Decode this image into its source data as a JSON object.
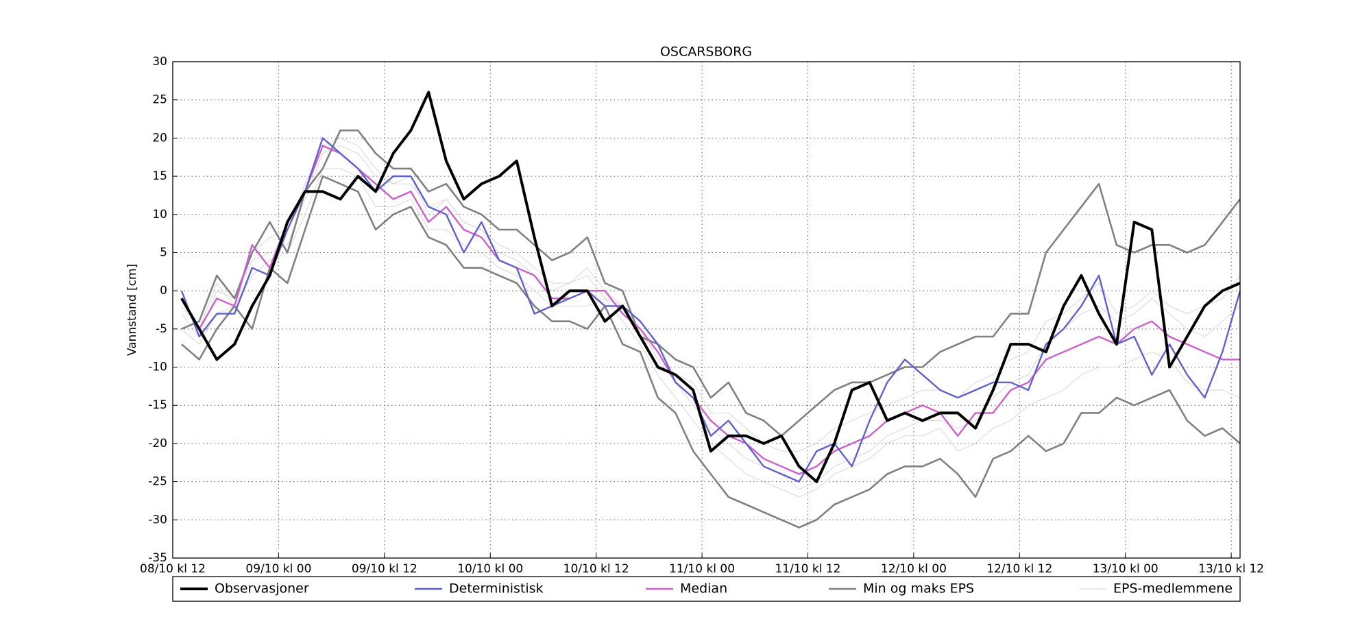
{
  "chart_data": {
    "type": "line",
    "title": "OSCARSBORG",
    "ylabel": "Vannstand [cm]",
    "x": [
      1,
      3,
      5,
      7,
      9,
      11,
      13,
      15,
      17,
      19,
      21,
      23,
      25,
      27,
      29,
      31,
      33,
      35,
      37,
      39,
      41,
      43,
      45,
      47,
      49,
      51,
      53,
      55,
      57,
      59,
      61,
      63,
      65,
      67,
      69,
      71,
      73,
      75,
      77,
      79,
      81,
      83,
      85,
      87,
      89,
      91,
      93,
      95,
      97,
      99,
      101,
      103,
      105,
      107,
      109,
      111,
      113,
      115,
      117,
      119,
      121
    ],
    "xlim": [
      0,
      121
    ],
    "xticks": [
      {
        "value": 0,
        "label": "08/10 kl 12"
      },
      {
        "value": 12,
        "label": "09/10 kl 00"
      },
      {
        "value": 24,
        "label": "09/10 kl 12"
      },
      {
        "value": 36,
        "label": "10/10 kl 00"
      },
      {
        "value": 48,
        "label": "10/10 kl 12"
      },
      {
        "value": 60,
        "label": "11/10 kl 00"
      },
      {
        "value": 72,
        "label": "11/10 kl 12"
      },
      {
        "value": 84,
        "label": "12/10 kl 00"
      },
      {
        "value": 96,
        "label": "12/10 kl 12"
      },
      {
        "value": 108,
        "label": "13/10 kl 00"
      },
      {
        "value": 120,
        "label": "13/10 kl 12"
      }
    ],
    "ylim": [
      -35,
      30
    ],
    "yticks": [
      -35,
      -30,
      -25,
      -20,
      -15,
      -10,
      -5,
      0,
      5,
      10,
      15,
      20,
      25,
      30
    ],
    "grid": true,
    "series": [
      {
        "name": "Observasjoner",
        "color": "#000000",
        "values": [
          -1,
          -5,
          -9,
          -7,
          -2,
          2,
          9,
          13,
          13,
          12,
          15,
          13,
          18,
          21,
          26,
          17,
          12,
          14,
          15,
          17,
          7,
          -2,
          0,
          0,
          -4,
          -2,
          -6,
          -10,
          -11,
          -13,
          -21,
          -19,
          -19,
          -20,
          -19,
          -23,
          -25,
          -20,
          -13,
          -12,
          -17,
          -16,
          -17,
          -16,
          -16,
          -18,
          -13,
          -7,
          -7,
          -8,
          -2,
          2,
          -3,
          -7,
          9,
          8,
          -10,
          -6,
          -2,
          0,
          1
        ]
      },
      {
        "name": "Deterministisk",
        "color": "#6060cc",
        "values": [
          0,
          -6,
          -3,
          -3,
          3,
          2,
          8,
          13,
          20,
          18,
          16,
          13,
          15,
          15,
          11,
          10,
          5,
          9,
          4,
          3,
          -3,
          -2,
          -1,
          0,
          -2,
          -2,
          -4,
          -7,
          -12,
          -14,
          -19,
          -17,
          -20,
          -23,
          -24,
          -25,
          -21,
          -20,
          -23,
          -17,
          -12,
          -9,
          -11,
          -13,
          -14,
          -13,
          -12,
          -12,
          -13,
          -7,
          -5,
          -2,
          2,
          -7,
          -6,
          -11,
          -7,
          -11,
          -14,
          -8,
          0
        ]
      },
      {
        "name": "Median",
        "color": "#cc5fcc",
        "values": [
          -1,
          -5,
          -1,
          -2,
          6,
          3,
          9,
          13,
          19,
          18,
          16,
          14,
          12,
          13,
          9,
          11,
          8,
          7,
          4,
          3,
          2,
          -1,
          -1,
          0,
          0,
          -3,
          -5,
          -8,
          -12,
          -14,
          -17,
          -19,
          -20,
          -22,
          -23,
          -24,
          -23,
          -21,
          -20,
          -19,
          -17,
          -16,
          -15,
          -16,
          -19,
          -16,
          -16,
          -13,
          -12,
          -9,
          -8,
          -7,
          -6,
          -7,
          -5,
          -4,
          -6,
          -7,
          -8,
          -9,
          -9
        ]
      },
      {
        "name": "Min og maks EPS",
        "color": "#808080",
        "min": [
          -7,
          -9,
          -5,
          -2,
          -5,
          3,
          1,
          8,
          15,
          14,
          13,
          8,
          10,
          11,
          7,
          6,
          3,
          3,
          2,
          1,
          -2,
          -4,
          -4,
          -5,
          -2,
          -7,
          -8,
          -14,
          -16,
          -21,
          -24,
          -27,
          -28,
          -29,
          -30,
          -31,
          -30,
          -28,
          -27,
          -26,
          -24,
          -23,
          -23,
          -22,
          -24,
          -27,
          -22,
          -21,
          -19,
          -21,
          -20,
          -16,
          -16,
          -14,
          -15,
          -14,
          -13,
          -17,
          -19,
          -18,
          -20
        ],
        "max": [
          -5,
          -4,
          2,
          -1,
          5,
          9,
          5,
          13,
          16,
          21,
          21,
          18,
          16,
          16,
          13,
          14,
          11,
          10,
          8,
          8,
          6,
          4,
          5,
          7,
          1,
          0,
          -6,
          -7,
          -9,
          -10,
          -14,
          -12,
          -16,
          -17,
          -19,
          -17,
          -15,
          -13,
          -12,
          -12,
          -11,
          -10,
          -10,
          -8,
          -7,
          -6,
          -6,
          -3,
          -3,
          5,
          8,
          11,
          14,
          6,
          5,
          6,
          6,
          5,
          6,
          9,
          12
        ]
      },
      {
        "name": "EPS-medlemmene",
        "color": "#d4d4d4",
        "members": [
          [
            -3,
            -6,
            0,
            -1,
            4,
            5,
            6,
            12,
            18,
            19,
            18,
            15,
            14,
            14,
            11,
            12,
            9,
            8,
            6,
            5,
            3,
            1,
            1,
            2,
            -1,
            -2,
            -6,
            -8,
            -11,
            -12,
            -16,
            -16,
            -18,
            -20,
            -21,
            -21,
            -20,
            -18,
            -17,
            -16,
            -15,
            -14,
            -13,
            -13,
            -14,
            -12,
            -11,
            -9,
            -8,
            -4,
            -3,
            -1,
            1,
            -3,
            -2,
            0,
            -2,
            -3,
            -2,
            -1,
            2
          ],
          [
            -5,
            -7,
            -3,
            -2,
            2,
            4,
            5,
            10,
            16,
            16,
            15,
            11,
            11,
            12,
            8,
            8,
            6,
            5,
            3,
            2,
            0,
            -2,
            -2,
            -2,
            -1,
            -4,
            -7,
            -11,
            -14,
            -17,
            -20,
            -22,
            -24,
            -25,
            -26,
            -27,
            -26,
            -24,
            -23,
            -22,
            -20,
            -19,
            -19,
            -18,
            -21,
            -20,
            -18,
            -17,
            -15,
            -14,
            -13,
            -11,
            -10,
            -10,
            -9,
            -8,
            -9,
            -12,
            -13,
            -13,
            -14
          ],
          [
            -2,
            -5,
            1,
            -2,
            5,
            7,
            8,
            14,
            19,
            20,
            19,
            16,
            14,
            15,
            10,
            12,
            9,
            8,
            5,
            4,
            2,
            0,
            1,
            3,
            0,
            -2,
            -5,
            -9,
            -12,
            -15,
            -18,
            -20,
            -22,
            -23,
            -24,
            -26,
            -25,
            -23,
            -22,
            -21,
            -19,
            -18,
            -17,
            -17,
            -18,
            -17,
            -14,
            -12,
            -11,
            -7,
            -5,
            -3,
            -2,
            -4,
            -3,
            -1,
            -3,
            -5,
            -6,
            -4,
            -2
          ]
        ]
      }
    ],
    "legend": "bottom"
  }
}
